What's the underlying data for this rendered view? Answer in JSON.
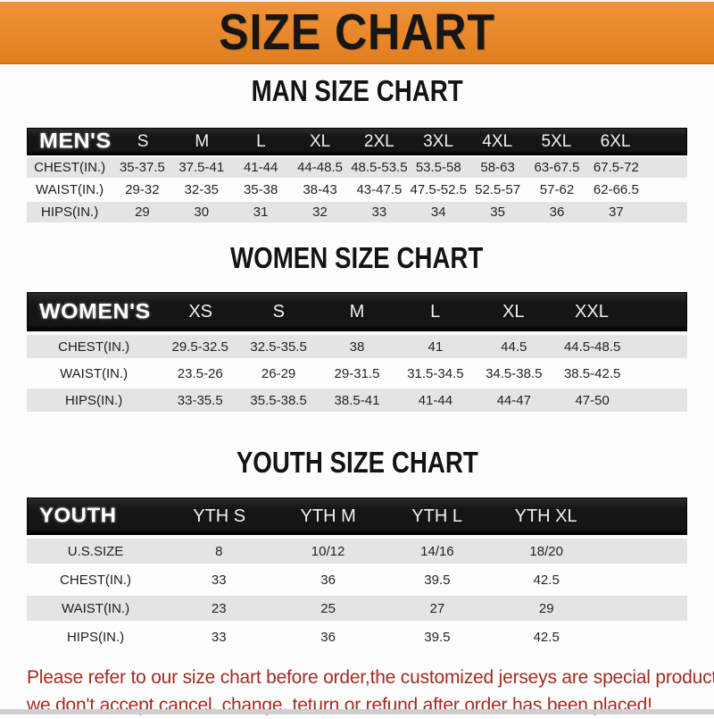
{
  "banner": {
    "title": "SIZE CHART"
  },
  "colors": {
    "banner_orange": "#E8882B",
    "header_bar_black": "#1C1C1C",
    "row_shade_gray": "#E4E4E4",
    "footer_red": "#A32B24"
  },
  "sections": [
    {
      "id": "men",
      "title": "MAN SIZE CHART",
      "table": {
        "header_label": "MEN'S",
        "columns": [
          "S",
          "M",
          "L",
          "XL",
          "2XL",
          "3XL",
          "4XL",
          "5XL",
          "6XL"
        ],
        "rows": [
          {
            "label": "CHEST(IN.)",
            "values": [
              "35-37.5",
              "37.5-41",
              "41-44",
              "44-48.5",
              "48.5-53.5",
              "53.5-58",
              "58-63",
              "63-67.5",
              "67.5-72"
            ]
          },
          {
            "label": "WAIST(IN.)",
            "values": [
              "29-32",
              "32-35",
              "35-38",
              "38-43",
              "43-47.5",
              "47.5-52.5",
              "52.5-57",
              "57-62",
              "62-66.5"
            ]
          },
          {
            "label": "HIPS(IN.)",
            "values": [
              "29",
              "30",
              "31",
              "32",
              "33",
              "34",
              "35",
              "36",
              "37"
            ]
          }
        ]
      }
    },
    {
      "id": "women",
      "title": "WOMEN SIZE CHART",
      "table": {
        "header_label": "WOMEN'S",
        "columns": [
          "XS",
          "S",
          "M",
          "L",
          "XL",
          "XXL"
        ],
        "rows": [
          {
            "label": "CHEST(IN.)",
            "values": [
              "29.5-32.5",
              "32.5-35.5",
              "38",
              "41",
              "44.5",
              "44.5-48.5"
            ]
          },
          {
            "label": "WAIST(IN.)",
            "values": [
              "23.5-26",
              "26-29",
              "29-31.5",
              "31.5-34.5",
              "34.5-38.5",
              "38.5-42.5"
            ]
          },
          {
            "label": "HIPS(IN.)",
            "values": [
              "33-35.5",
              "35.5-38.5",
              "38.5-41",
              "41-44",
              "44-47",
              "47-50"
            ]
          }
        ]
      }
    },
    {
      "id": "youth",
      "title": "YOUTH SIZE CHART",
      "table": {
        "header_label": "YOUTH",
        "columns": [
          "YTH S",
          "YTH M",
          "YTH L",
          "YTH XL"
        ],
        "rows": [
          {
            "label": "U.S.SIZE",
            "values": [
              "8",
              "10/12",
              "14/16",
              "18/20"
            ]
          },
          {
            "label": "CHEST(IN.)",
            "values": [
              "33",
              "36",
              "39.5",
              "42.5"
            ]
          },
          {
            "label": "WAIST(IN.)",
            "values": [
              "23",
              "25",
              "27",
              "29"
            ]
          },
          {
            "label": "HIPS(IN.)",
            "values": [
              "33",
              "36",
              "39.5",
              "42.5"
            ]
          }
        ]
      }
    }
  ],
  "footer": {
    "lines": [
      "Please refer to our size chart before order,the customized jerseys are special products,",
      "we don't accept cancel, change, teturn or refund after order has been placed!"
    ]
  }
}
